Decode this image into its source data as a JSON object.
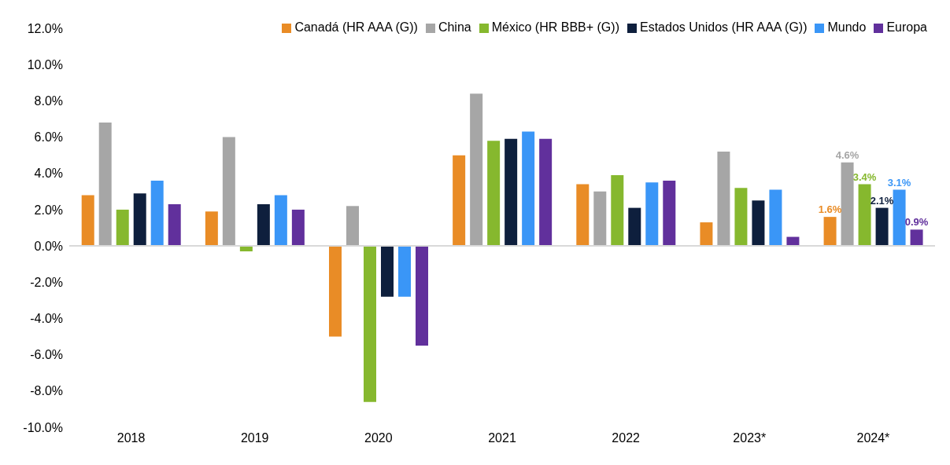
{
  "chart_data": {
    "type": "bar",
    "categories": [
      "2018",
      "2019",
      "2020",
      "2021",
      "2022",
      "2023*",
      "2024*"
    ],
    "series": [
      {
        "name": "Canadá (HR AAA (G))",
        "color": "#e98c26",
        "values": [
          2.8,
          1.9,
          -5.0,
          5.0,
          3.4,
          1.3,
          1.6
        ],
        "value_labels": [
          null,
          null,
          null,
          null,
          null,
          null,
          "1.6%"
        ]
      },
      {
        "name": "China",
        "color": "#a6a6a6",
        "values": [
          6.8,
          6.0,
          2.2,
          8.4,
          3.0,
          5.2,
          4.6
        ],
        "value_labels": [
          null,
          null,
          null,
          null,
          null,
          null,
          "4.6%"
        ]
      },
      {
        "name": "México (HR BBB+ (G))",
        "color": "#86b82e",
        "values": [
          2.0,
          -0.3,
          -8.6,
          5.8,
          3.9,
          3.2,
          3.4
        ],
        "value_labels": [
          null,
          null,
          null,
          null,
          null,
          null,
          "3.4%"
        ]
      },
      {
        "name": "Estados Unidos (HR AAA (G))",
        "color": "#0e1f3d",
        "values": [
          2.9,
          2.3,
          -2.8,
          5.9,
          2.1,
          2.5,
          2.1
        ],
        "value_labels": [
          null,
          null,
          null,
          null,
          null,
          null,
          "2.1%"
        ]
      },
      {
        "name": "Mundo",
        "color": "#3a96f7",
        "values": [
          3.6,
          2.8,
          -2.8,
          6.3,
          3.5,
          3.1,
          3.1
        ],
        "value_labels": [
          null,
          null,
          null,
          null,
          null,
          null,
          "3.1%"
        ]
      },
      {
        "name": "Europa",
        "color": "#61309c",
        "values": [
          2.3,
          2.0,
          -5.5,
          5.9,
          3.6,
          0.5,
          0.9
        ],
        "value_labels": [
          null,
          null,
          null,
          null,
          null,
          null,
          "0.9%"
        ]
      }
    ],
    "ylim": [
      -10,
      12
    ],
    "yticks": [
      {
        "value": -10,
        "label": "-10.0%"
      },
      {
        "value": -8,
        "label": "-8.0%"
      },
      {
        "value": -6,
        "label": "-6.0%"
      },
      {
        "value": -4,
        "label": "-4.0%"
      },
      {
        "value": -2,
        "label": "-2.0%"
      },
      {
        "value": 0,
        "label": "0.0%"
      },
      {
        "value": 2,
        "label": "2.0%"
      },
      {
        "value": 4,
        "label": "4.0%"
      },
      {
        "value": 6,
        "label": "6.0%"
      },
      {
        "value": 8,
        "label": "8.0%"
      },
      {
        "value": 10,
        "label": "10.0%"
      },
      {
        "value": 12,
        "label": "12.0%"
      }
    ],
    "legend": "top right"
  }
}
